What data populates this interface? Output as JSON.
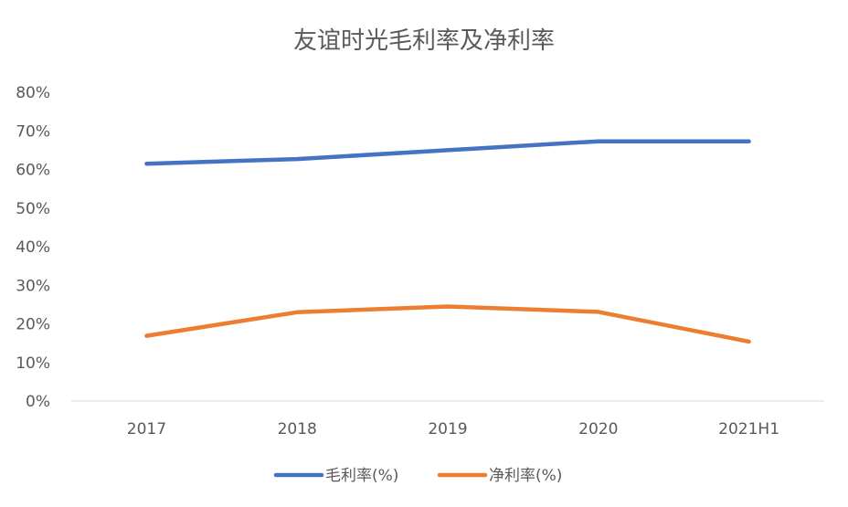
{
  "chart_data": {
    "type": "line",
    "title": "友谊时光毛利率及净利率",
    "xlabel": "",
    "ylabel": "",
    "categories": [
      "2017",
      "2018",
      "2019",
      "2020",
      "2021H1"
    ],
    "ylim": [
      0,
      80
    ],
    "yticks": [
      "0%",
      "10%",
      "20%",
      "30%",
      "40%",
      "50%",
      "60%",
      "70%",
      "80%"
    ],
    "grid": false,
    "legend_position": "bottom",
    "series": [
      {
        "name": "毛利率(%)",
        "color": "#4472C4",
        "values": [
          61.5,
          62.7,
          65.0,
          67.3,
          67.3
        ]
      },
      {
        "name": "净利率(%)",
        "color": "#ED7D31",
        "values": [
          16.9,
          23.0,
          24.5,
          23.1,
          15.4
        ]
      }
    ]
  }
}
